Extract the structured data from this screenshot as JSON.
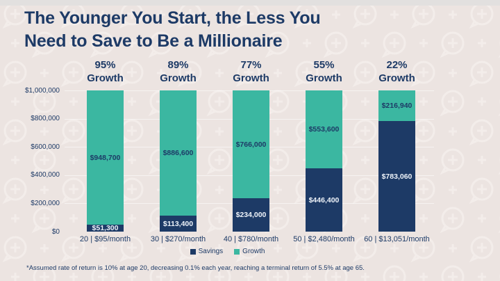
{
  "header": {
    "title_lines": [
      "The Younger You Start, the Less You",
      "Need to Save to Be a Millionaire"
    ]
  },
  "chart_data": {
    "type": "bar",
    "stacked": true,
    "title": "The Younger You Start, the Less You Need to Save to Be a Millionaire",
    "categories": [
      "20 | $95/month",
      "30 | $270/month",
      "40 | $780/month",
      "50 | $2,480/month",
      "60 | $13,051/month"
    ],
    "growth_percent_labels": [
      "95%",
      "89%",
      "77%",
      "55%",
      "22%"
    ],
    "growth_header_word": "Growth",
    "series": [
      {
        "name": "Savings",
        "color": "#1d3a66",
        "values": [
          51300,
          113400,
          234000,
          446400,
          783060
        ],
        "value_labels": [
          "$51,300",
          "$113,400",
          "$234,000",
          "$446,400",
          "$783,060"
        ]
      },
      {
        "name": "Growth",
        "color": "#3bb7a1",
        "values": [
          948700,
          886600,
          766000,
          553600,
          216940
        ],
        "value_labels": [
          "$948,700",
          "$886,600",
          "$766,000",
          "$553,600",
          "$216,940"
        ]
      }
    ],
    "y_axis": {
      "ylim": [
        0,
        1000000
      ],
      "ticks": [
        1000000,
        800000,
        600000,
        400000,
        200000,
        0
      ],
      "tick_labels": [
        "$1,000,000",
        "$800,000",
        "$600,000",
        "$400,000",
        "$200,000",
        "$0"
      ],
      "grid": true
    },
    "legend": {
      "position": "bottom",
      "entries": [
        {
          "label": "Savings",
          "color": "#1d3a66"
        },
        {
          "label": "Growth",
          "color": "#3bb7a1"
        }
      ]
    }
  },
  "footnote": {
    "text": "*Assumed rate of return is 10% at age 20, decreasing 0.1% each year, reaching a terminal return of 5.5% at age 65."
  },
  "colors": {
    "background": "#ece4e1",
    "pattern": "#f6f0ee",
    "navy": "#1d3a66",
    "teal": "#3bb7a1",
    "label_on_navy": "#eef3f9"
  }
}
